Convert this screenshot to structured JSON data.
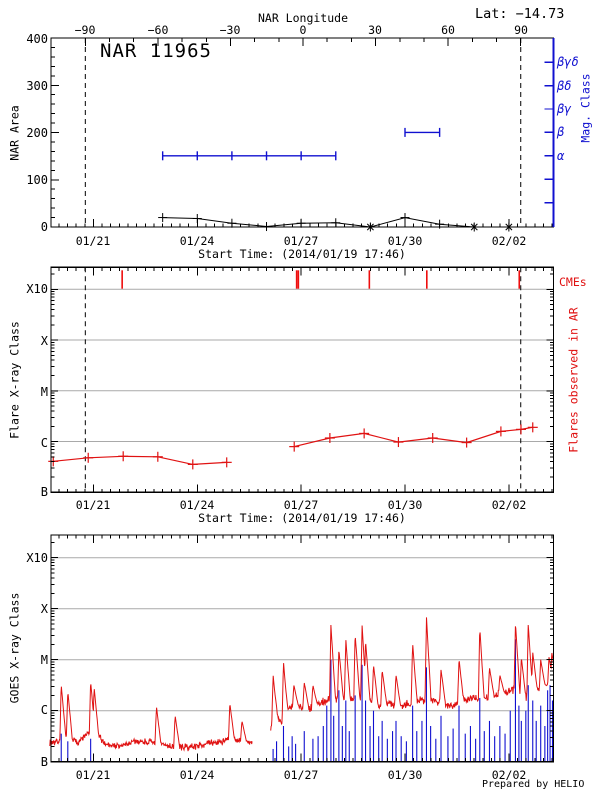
{
  "page": {
    "lat_label": "Lat: −14.73",
    "footer": "Prepared by HELIO"
  },
  "colors": {
    "black": "#000000",
    "red": "#e01212",
    "cme_red": "#ee0e0e",
    "blue": "#1010d0",
    "grid": "#a9a9a9",
    "bg": "#ffffff"
  },
  "panel1": {
    "title": "NAR 11965",
    "top_axis": {
      "title": "NAR Longitude",
      "ticks": [
        "−90",
        "−60",
        "−30",
        "0",
        "30",
        "60",
        "90"
      ]
    },
    "y_axis": {
      "title": "NAR Area",
      "ticks": [
        "400",
        "300",
        "200",
        "100",
        "0"
      ]
    },
    "right_axis": {
      "title": "Mag. Class",
      "labels": [
        "βγδ",
        "βδ",
        "βγ",
        "β",
        "α"
      ]
    },
    "x_axis": {
      "title": "Start Time: (2014/01/19 17:46)",
      "ticks": [
        "01/21",
        "01/24",
        "01/27",
        "01/30",
        "02/02"
      ]
    }
  },
  "panel2": {
    "y_axis": {
      "title": "Flare X-ray Class",
      "ticks": [
        "X10",
        "X",
        "M",
        "C",
        "B"
      ]
    },
    "right_axis": {
      "cme_label": "CMEs",
      "flares_label": "Flares observed in AR"
    },
    "x_axis": {
      "title": "Start Time: (2014/01/19 17:46)",
      "ticks": [
        "01/21",
        "01/24",
        "01/27",
        "01/30",
        "02/02"
      ]
    }
  },
  "panel3": {
    "y_axis": {
      "title": "GOES X-ray Class",
      "ticks": [
        "X10",
        "X",
        "M",
        "C",
        "B"
      ]
    },
    "x_axis": {
      "ticks": [
        "01/21",
        "01/24",
        "01/27",
        "01/30",
        "02/02"
      ]
    }
  },
  "chart_data": [
    {
      "type": "line",
      "name": "nar-area-and-mag-class",
      "title": "NAR 11965",
      "xlabel": "Start Time: (2014/01/19 17:46)",
      "ylabel": "NAR Area",
      "ylim": [
        0,
        400
      ],
      "t_range_days": [
        0,
        14.55
      ],
      "date_tick_days": [
        1.2597,
        4.2597,
        7.2597,
        10.2597,
        13.2597
      ],
      "longitude_ticks": [
        -90,
        -60,
        -30,
        0,
        30,
        60,
        90
      ],
      "longitude_minus90_day": 1.026,
      "longitude_plus90_day": 13.603,
      "dashed_line_days": [
        1.026,
        13.603
      ],
      "area_series": {
        "days_since_start": [
          3.26,
          4.26,
          5.26,
          6.26,
          7.26,
          8.26,
          9.26,
          10.26,
          11.26,
          12.26,
          13.26
        ],
        "values": [
          20,
          18,
          8,
          1,
          8,
          9,
          0,
          20,
          6,
          0,
          0
        ],
        "markers": [
          "plus",
          "plus",
          "plus",
          "plus",
          "plus",
          "plus",
          "star",
          "plus",
          "plus",
          "star",
          "star"
        ]
      },
      "mag_class_segments": [
        {
          "class": "α",
          "t_start": 3.26,
          "t_end": 8.26,
          "marker_days": [
            3.26,
            4.26,
            5.26,
            6.26,
            7.26,
            8.26
          ]
        },
        {
          "class": "β",
          "t_start": 10.26,
          "t_end": 11.26,
          "marker_days": [
            10.26,
            11.26
          ]
        }
      ],
      "mag_axis_labels": [
        "βγδ",
        "βδ",
        "βγ",
        "β",
        "α",
        "",
        ""
      ]
    },
    {
      "type": "line",
      "name": "flares-observed-in-ar",
      "xlabel": "Start Time: (2014/01/19 17:46)",
      "ylabel": "Flare X-ray Class",
      "y_scale": "log10 W/m2, B=-7 C=-6 M=-5 X=-4 X10=-3",
      "cme_event_days": [
        2.09,
        7.13,
        7.18,
        9.23,
        10.89,
        13.56
      ],
      "dashed_line_days": [
        1.026,
        13.603
      ],
      "flare_segments": [
        {
          "days_since_start": [
            0.1,
            1.11,
            2.12,
            3.12,
            4.13,
            5.11
          ],
          "log_flux": [
            -6.39,
            -6.32,
            -6.29,
            -6.3,
            -6.45,
            -6.41
          ],
          "class_labels": [
            "B4.1",
            "B4.8",
            "B5.1",
            "B5.0",
            "B3.5",
            "B3.9"
          ]
        },
        {
          "days_since_start": [
            7.06,
            8.09,
            9.08,
            10.07,
            11.06,
            12.04,
            13.03,
            13.61,
            13.95
          ],
          "log_flux": [
            -6.1,
            -5.93,
            -5.84,
            -6.01,
            -5.93,
            -6.02,
            -5.8,
            -5.76,
            -5.72
          ],
          "class_labels": [
            "B7.9",
            "C1.2",
            "C1.4",
            "B9.8",
            "C1.2",
            "B9.5",
            "C1.6",
            "C1.7",
            "C1.9"
          ]
        }
      ]
    },
    {
      "type": "area",
      "name": "goes-xray-flux",
      "ylabel": "GOES X-ray Class",
      "y_scale": "log10 W/m2, B=-7 C=-6 M=-5 X=-4 X10=-3",
      "data_gap_days": [
        5.85,
        6.38
      ],
      "red_baseline": [
        [
          0,
          -6.62
        ],
        [
          0.3,
          -6.6
        ],
        [
          0.42,
          -6.48
        ],
        [
          0.6,
          -6.55
        ],
        [
          0.8,
          -6.62
        ],
        [
          1.1,
          -6.45
        ],
        [
          1.35,
          -6.45
        ],
        [
          1.6,
          -6.65
        ],
        [
          2.0,
          -6.7
        ],
        [
          2.5,
          -6.6
        ],
        [
          3.0,
          -6.62
        ],
        [
          3.5,
          -6.7
        ],
        [
          4.0,
          -6.72
        ],
        [
          4.5,
          -6.65
        ],
        [
          5.0,
          -6.6
        ],
        [
          5.3,
          -6.55
        ],
        [
          5.6,
          -6.6
        ],
        [
          5.85,
          -6.62
        ],
        [
          6.4,
          -6.35
        ],
        [
          6.55,
          -6.1
        ],
        [
          6.7,
          -6.25
        ],
        [
          6.9,
          -5.95
        ],
        [
          7.2,
          -5.9
        ],
        [
          7.5,
          -5.95
        ],
        [
          7.8,
          -5.85
        ],
        [
          8.0,
          -5.8
        ],
        [
          8.3,
          -5.75
        ],
        [
          8.6,
          -5.8
        ],
        [
          8.9,
          -5.7
        ],
        [
          9.2,
          -5.8
        ],
        [
          9.5,
          -5.9
        ],
        [
          9.8,
          -5.85
        ],
        [
          10.1,
          -5.9
        ],
        [
          10.4,
          -5.85
        ],
        [
          10.7,
          -5.8
        ],
        [
          11.0,
          -5.75
        ],
        [
          11.3,
          -5.85
        ],
        [
          11.6,
          -5.9
        ],
        [
          11.9,
          -5.8
        ],
        [
          12.2,
          -5.75
        ],
        [
          12.5,
          -5.8
        ],
        [
          12.8,
          -5.7
        ],
        [
          13.1,
          -5.65
        ],
        [
          13.4,
          -5.6
        ],
        [
          13.7,
          -5.75
        ],
        [
          14.0,
          -5.6
        ],
        [
          14.2,
          -5.55
        ],
        [
          14.35,
          -5.5
        ],
        [
          14.55,
          -5.45
        ]
      ],
      "red_spikes": [
        [
          0.33,
          -5.48
        ],
        [
          0.52,
          -5.62
        ],
        [
          1.18,
          -5.42
        ],
        [
          1.28,
          -5.55
        ],
        [
          3.08,
          -5.92
        ],
        [
          3.62,
          -6.1
        ],
        [
          5.2,
          -5.85
        ],
        [
          5.55,
          -6.2
        ],
        [
          6.45,
          -5.3
        ],
        [
          6.75,
          -5.05
        ],
        [
          7.05,
          -5.5
        ],
        [
          7.35,
          -5.45
        ],
        [
          7.6,
          -5.5
        ],
        [
          8.12,
          -4.32
        ],
        [
          8.35,
          -4.8
        ],
        [
          8.55,
          -4.6
        ],
        [
          8.82,
          -4.5
        ],
        [
          9.02,
          -4.33
        ],
        [
          9.12,
          -4.62
        ],
        [
          9.35,
          -5.1
        ],
        [
          9.6,
          -5.2
        ],
        [
          10.0,
          -5.3
        ],
        [
          10.48,
          -4.68
        ],
        [
          10.88,
          -4.17
        ],
        [
          11.3,
          -5.2
        ],
        [
          11.82,
          -4.98
        ],
        [
          12.42,
          -4.38
        ],
        [
          12.7,
          -5.15
        ],
        [
          13.0,
          -5.3
        ],
        [
          13.45,
          -4.28
        ],
        [
          13.62,
          -4.95
        ],
        [
          13.82,
          -4.32
        ],
        [
          13.95,
          -4.85
        ],
        [
          14.18,
          -5.0
        ],
        [
          14.42,
          -4.95
        ],
        [
          14.5,
          -4.85
        ]
      ],
      "blue_spikes": [
        [
          0.33,
          -6.45
        ],
        [
          0.52,
          -6.6
        ],
        [
          1.18,
          -6.55
        ],
        [
          6.45,
          -6.75
        ],
        [
          6.55,
          -6.6
        ],
        [
          6.75,
          -6.3
        ],
        [
          6.9,
          -6.7
        ],
        [
          7.0,
          -6.5
        ],
        [
          7.1,
          -6.65
        ],
        [
          7.35,
          -6.4
        ],
        [
          7.6,
          -6.55
        ],
        [
          7.75,
          -6.5
        ],
        [
          7.9,
          -6.3
        ],
        [
          8.0,
          -5.9
        ],
        [
          8.12,
          -5.0
        ],
        [
          8.2,
          -6.1
        ],
        [
          8.35,
          -5.6
        ],
        [
          8.45,
          -6.3
        ],
        [
          8.55,
          -5.8
        ],
        [
          8.65,
          -6.4
        ],
        [
          8.82,
          -5.7
        ],
        [
          9.02,
          -5.1
        ],
        [
          9.12,
          -5.8
        ],
        [
          9.25,
          -6.3
        ],
        [
          9.35,
          -6.0
        ],
        [
          9.5,
          -6.5
        ],
        [
          9.6,
          -6.2
        ],
        [
          9.75,
          -6.55
        ],
        [
          9.9,
          -6.4
        ],
        [
          10.0,
          -6.2
        ],
        [
          10.15,
          -6.5
        ],
        [
          10.3,
          -6.6
        ],
        [
          10.48,
          -5.9
        ],
        [
          10.6,
          -6.4
        ],
        [
          10.75,
          -6.2
        ],
        [
          10.88,
          -5.15
        ],
        [
          11.0,
          -6.3
        ],
        [
          11.15,
          -6.55
        ],
        [
          11.3,
          -6.1
        ],
        [
          11.5,
          -6.5
        ],
        [
          11.65,
          -6.35
        ],
        [
          11.82,
          -5.9
        ],
        [
          12.0,
          -6.45
        ],
        [
          12.15,
          -6.3
        ],
        [
          12.3,
          -6.55
        ],
        [
          12.42,
          -5.75
        ],
        [
          12.55,
          -6.4
        ],
        [
          12.7,
          -6.2
        ],
        [
          12.85,
          -6.5
        ],
        [
          13.0,
          -6.3
        ],
        [
          13.15,
          -6.45
        ],
        [
          13.3,
          -6.0
        ],
        [
          13.45,
          -4.6
        ],
        [
          13.55,
          -5.9
        ],
        [
          13.62,
          -6.2
        ],
        [
          13.75,
          -6.0
        ],
        [
          13.82,
          -5.5
        ],
        [
          13.95,
          -5.8
        ],
        [
          14.05,
          -6.2
        ],
        [
          14.18,
          -5.9
        ],
        [
          14.3,
          -6.3
        ],
        [
          14.38,
          -5.6
        ],
        [
          14.45,
          -5.5
        ],
        [
          14.52,
          -5.8
        ]
      ]
    }
  ]
}
